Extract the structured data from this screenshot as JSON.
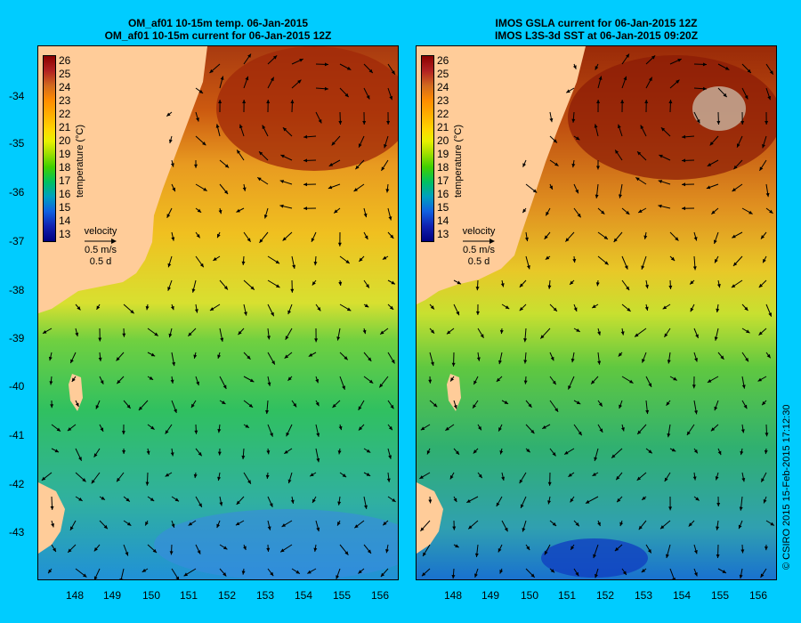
{
  "left_panel": {
    "title_line1": "OM_af01 10-15m temp. 06-Jan-2015",
    "title_line2": "OM_af01 10-15m current for 06-Jan-2015 12Z"
  },
  "right_panel": {
    "title_line1": "IMOS GSLA current for 06-Jan-2015 12Z",
    "title_line2": "IMOS L3S-3d SST at 06-Jan-2015 09:20Z"
  },
  "y_axis_ticks": [
    "-34",
    "-35",
    "-36",
    "-37",
    "-38",
    "-39",
    "-40",
    "-41",
    "-42",
    "-43"
  ],
  "x_axis_ticks": [
    "148",
    "149",
    "150",
    "151",
    "152",
    "153",
    "154",
    "155",
    "156"
  ],
  "colorbar": {
    "ticks": [
      "26",
      "25",
      "24",
      "23",
      "22",
      "21",
      "20",
      "19",
      "18",
      "17",
      "16",
      "15",
      "14",
      "13"
    ],
    "unit_label": "temperature (°C)",
    "colors_hex": [
      "#8b0000",
      "#d2691e",
      "#ffb000",
      "#e8f000",
      "#40d000",
      "#00a0c0",
      "#1020b0"
    ]
  },
  "velocity_legend": {
    "label": "velocity",
    "scale": "0.5 m/s",
    "duration": "0.5 d"
  },
  "credit": "© CSIRO 2015   15-Feb-2015 17:12:30",
  "colors": {
    "background": "#00ccff",
    "land": "#ffcc99",
    "no_data": "#c8b4a0"
  }
}
